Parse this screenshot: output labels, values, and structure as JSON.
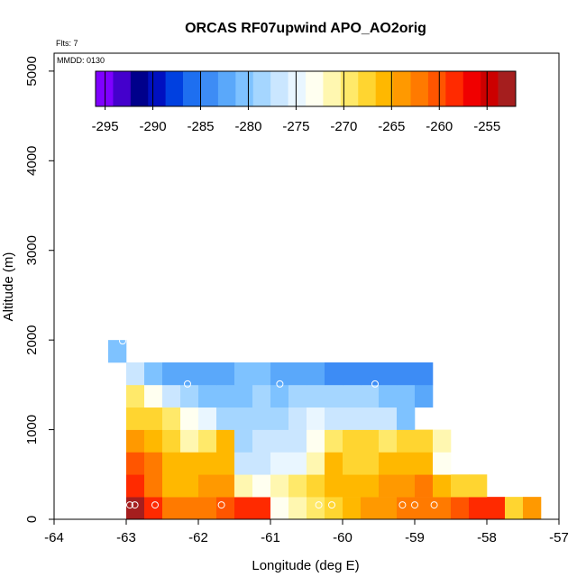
{
  "chart_data": {
    "type": "heatmap",
    "title": "ORCAS RF07upwind APO_AO2orig",
    "flights_label": "Flts: 7",
    "date_label": "MMDD: 0130",
    "xlabel": "Longitude (deg E)",
    "ylabel": "Altitude (m)",
    "xlim": [
      -64,
      -57
    ],
    "ylim": [
      0,
      5200
    ],
    "xticks": [
      -64,
      -63,
      -62,
      -61,
      -60,
      -59,
      -58,
      -57
    ],
    "yticks": [
      0,
      1000,
      2000,
      3000,
      4000,
      5000
    ],
    "cell_size": {
      "lon": 0.25,
      "alt": 250
    },
    "colorbar": {
      "range": [
        -296,
        -252
      ],
      "ticks": [
        -295,
        -290,
        -285,
        -280,
        -275,
        -270,
        -265,
        -260,
        -255
      ],
      "colors": [
        "#7f00ff",
        "#4400cc",
        "#00008b",
        "#0010c0",
        "#0040e0",
        "#1e6ff0",
        "#3d8cf5",
        "#5aa8fa",
        "#7ec2ff",
        "#a5d6ff",
        "#cae6ff",
        "#e9f6ff",
        "#fffff0",
        "#fff7b0",
        "#ffe96a",
        "#ffd530",
        "#ffb800",
        "#ff9900",
        "#ff7a00",
        "#ff5500",
        "#ff2a00",
        "#f00000",
        "#cc0000",
        "#a51e1e"
      ]
    },
    "rows": [
      {
        "alt": [
          0,
          250
        ],
        "lon_start": -63.0,
        "values": [
          -253.5,
          -258.5,
          -261.5,
          -263.0,
          -262.0,
          -261.0,
          -258.5,
          -258.5,
          -274.0,
          -270.5,
          -269.0,
          -267.5,
          -266.0,
          -264.0,
          -264.5,
          -261.5,
          -262.5,
          -261.5,
          -260.0,
          -259.0,
          -258.0,
          -267.0,
          -264.0
        ]
      },
      {
        "alt": [
          250,
          500
        ],
        "lon_start": -63.0,
        "values": [
          -258.5,
          -262.5,
          -265.0,
          -265.5,
          -264.0,
          -263.5,
          -272.0,
          -273.0,
          -271.0,
          -270.0,
          -268.5,
          -266.0,
          -265.5,
          -265.5,
          -264.5,
          -264.0,
          -263.0,
          -266.0,
          -267.0,
          -268.0
        ]
      },
      {
        "alt": [
          500,
          750
        ],
        "lon_start": -63.0,
        "values": [
          -260.0,
          -262.0,
          -265.0,
          -266.0,
          -266.5,
          -265.0,
          -276.0,
          -276.5,
          -275.0,
          -274.5,
          -271.0,
          -266.0,
          -267.5,
          -267.5,
          -266.5,
          -266.5,
          -265.5,
          -273.0
        ]
      },
      {
        "alt": [
          750,
          1000
        ],
        "lon_start": -63.0,
        "values": [
          -263.5,
          -265.0,
          -267.0,
          -272.0,
          -269.0,
          -265.5,
          -278.0,
          -277.5,
          -277.0,
          -276.0,
          -274.0,
          -270.0,
          -268.5,
          -268.5,
          -269.0,
          -268.5,
          -268.0,
          -271.5
        ]
      },
      {
        "alt": [
          1000,
          1250
        ],
        "lon_start": -63.0,
        "values": [
          -267.0,
          -268.5,
          -269.5,
          -273.5,
          -275.0,
          -279.0,
          -278.5,
          -278.5,
          -278.0,
          -277.5,
          -275.0,
          -276.5,
          -276.5,
          -277.0,
          -277.0,
          -281.0
        ]
      },
      {
        "alt": [
          1250,
          1500
        ],
        "lon_start": -63.0,
        "values": [
          -270.0,
          -272.5,
          -277.0,
          -278.5,
          -280.0,
          -280.5,
          -280.0,
          -279.5,
          -280.0,
          -279.5,
          -279.0,
          -278.0,
          -279.0,
          -279.5,
          -280.5,
          -281.0,
          -281.5
        ]
      },
      {
        "alt": [
          1500,
          1750
        ],
        "lon_start": -63.0,
        "values": [
          -277.5,
          -280.0,
          -281.5,
          -282.5,
          -282.0,
          -281.5,
          -281.0,
          -281.0,
          -282.0,
          -281.5,
          -283.0,
          -283.5,
          -283.5,
          -284.0,
          -284.5,
          -284.5,
          -283.5
        ]
      },
      {
        "alt": [
          1750,
          2000
        ],
        "lon_start": -63.25,
        "values": [
          -280.0
        ]
      }
    ],
    "circle_markers": [
      {
        "lon": -62.95,
        "alt": 160
      },
      {
        "lon": -62.88,
        "alt": 160
      },
      {
        "lon": -62.6,
        "alt": 160
      },
      {
        "lon": -61.68,
        "alt": 160
      },
      {
        "lon": -60.33,
        "alt": 160
      },
      {
        "lon": -60.15,
        "alt": 160
      },
      {
        "lon": -59.17,
        "alt": 160
      },
      {
        "lon": -59.0,
        "alt": 160
      },
      {
        "lon": -58.73,
        "alt": 160
      },
      {
        "lon": -62.15,
        "alt": 1510
      },
      {
        "lon": -60.87,
        "alt": 1510
      },
      {
        "lon": -59.55,
        "alt": 1510
      },
      {
        "lon": -63.05,
        "alt": 1990
      }
    ]
  }
}
